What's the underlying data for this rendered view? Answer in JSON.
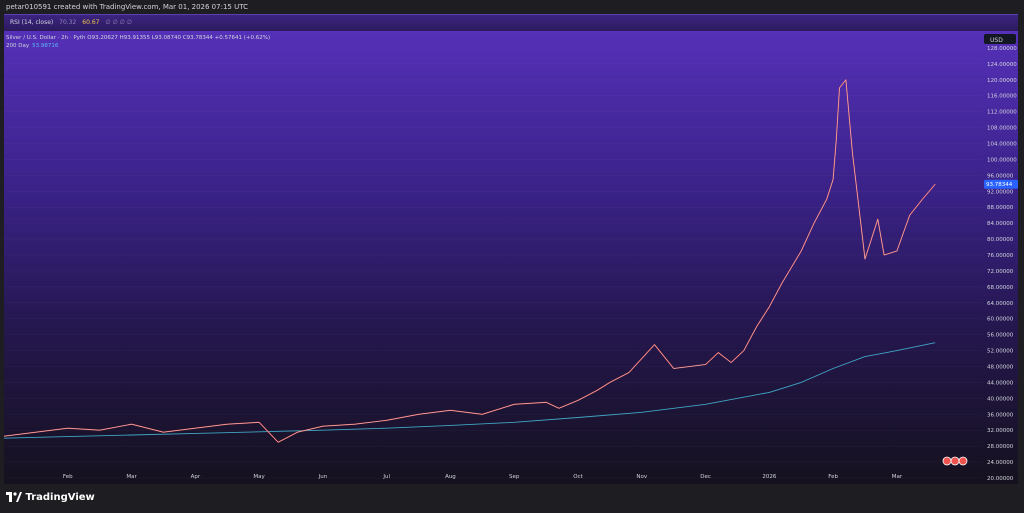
{
  "header": {
    "creator": "petar010591 created with TradingView.com, Mar 01, 2026 07:15 UTC"
  },
  "rsi": {
    "label": "RSI (14, close)",
    "dim1": "70.32",
    "value": "60.67",
    "dim2": "∅ ∅ ∅ ∅"
  },
  "legend": {
    "symbol_line": "Silver / U.S. Dollar · 2h · Pyth  O93.20627  H93.91355  L93.08740  C93.78344  +0.57641 (+0.62%)",
    "ma_label": "200 Day",
    "ma_value": "53.98716"
  },
  "brand": {
    "name": "TradingView"
  },
  "colors": {
    "up": "#e8e8e8",
    "down": "#ef5350",
    "ma": "#3fa6c4",
    "price_tag": "#2962ff"
  },
  "chart_data": {
    "type": "line",
    "title": "Silver / U.S. Dollar · 2h · Pyth",
    "currency": "USD",
    "ylim": [
      20,
      130
    ],
    "y_ticks": [
      20,
      24,
      28,
      32,
      36,
      40,
      44,
      48,
      52,
      56,
      60,
      64,
      68,
      72,
      76,
      80,
      84,
      88,
      92,
      96,
      100,
      104,
      108,
      112,
      116,
      120,
      124,
      128
    ],
    "y_tick_labels": [
      "20.00000",
      "24.00000",
      "28.00000",
      "32.00000",
      "36.00000",
      "40.00000",
      "44.00000",
      "48.00000",
      "52.00000",
      "56.00000",
      "60.00000",
      "64.00000",
      "68.00000",
      "72.00000",
      "76.00000",
      "80.00000",
      "84.00000",
      "88.00000",
      "92.00000",
      "96.00000",
      "100.00000",
      "104.00000",
      "108.00000",
      "112.00000",
      "116.00000",
      "120.00000",
      "124.00000",
      "128.00000"
    ],
    "x_labels": [
      "Feb",
      "Mar",
      "Apr",
      "May",
      "Jun",
      "Jul",
      "Aug",
      "Sep",
      "Oct",
      "Nov",
      "Dec",
      "2026",
      "Feb",
      "Mar"
    ],
    "x_label_months": [
      1,
      2,
      3,
      4,
      5,
      6,
      7,
      8,
      9,
      10,
      11,
      12,
      13,
      14
    ],
    "last_price": "93.78344",
    "series": [
      {
        "name": "Silver / U.S. Dollar",
        "x": [
          0,
          0.5,
          1,
          1.5,
          2,
          2.5,
          3,
          3.5,
          4,
          4.3,
          4.6,
          5,
          5.5,
          6,
          6.5,
          7,
          7.5,
          8,
          8.5,
          8.7,
          9,
          9.3,
          9.5,
          9.8,
          10,
          10.2,
          10.5,
          11,
          11.2,
          11.4,
          11.6,
          11.8,
          12,
          12.2,
          12.5,
          12.7,
          12.9,
          13,
          13.05,
          13.1,
          13.2,
          13.3,
          13.5,
          13.7,
          13.8,
          14,
          14.2,
          14.4,
          14.6
        ],
        "y": [
          30.5,
          31.5,
          32.5,
          32,
          33.5,
          31.5,
          32.5,
          33.5,
          34,
          29,
          31.5,
          33,
          33.5,
          34.5,
          36,
          37,
          36,
          38.5,
          39,
          37.5,
          39.5,
          42,
          44,
          46.5,
          50,
          53.5,
          47.5,
          48.5,
          51.5,
          49,
          52,
          58,
          63,
          69,
          77,
          84,
          90,
          95,
          105,
          118,
          120,
          102,
          75,
          85,
          76,
          77,
          86,
          90,
          93.78
        ]
      },
      {
        "name": "200 Day",
        "x": [
          0,
          1,
          2,
          3,
          4,
          5,
          6,
          7,
          8,
          9,
          10,
          11,
          12,
          12.5,
          13,
          13.5,
          14,
          14.6
        ],
        "y": [
          30,
          30.4,
          30.8,
          31.2,
          31.6,
          32,
          32.5,
          33.2,
          34,
          35.2,
          36.5,
          38.5,
          41.5,
          44,
          47.5,
          50.5,
          52,
          53.99
        ]
      }
    ]
  }
}
